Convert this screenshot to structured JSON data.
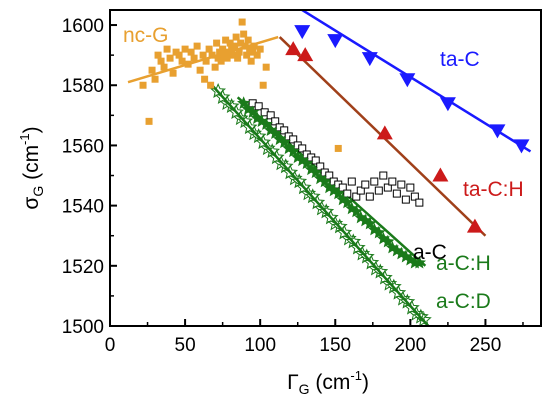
{
  "chart_data": {
    "type": "scatter",
    "title": "",
    "xlabel": {
      "main": "Γ",
      "sub": "G",
      "unit": "(cm",
      "exp": "-1",
      "close": ")"
    },
    "ylabel": {
      "main": "σ",
      "sub": "G",
      "unit": "(cm",
      "exp": "-1",
      "close": ")"
    },
    "xlim": [
      0,
      287
    ],
    "ylim": [
      1500,
      1605
    ],
    "xticks": [
      "0",
      "50",
      "100",
      "150",
      "200",
      "250"
    ],
    "yticks": [
      "1500",
      "1520",
      "1540",
      "1560",
      "1580",
      "1600"
    ],
    "grid": false,
    "legend": "none",
    "series": [
      {
        "name": "ta-C",
        "color": "#1a1aff",
        "marker": "triangle-down",
        "fit": [
          [
            115,
            1609
          ],
          [
            280,
            1558
          ]
        ],
        "points": [
          [
            128,
            1598
          ],
          [
            150,
            1595
          ],
          [
            173,
            1589
          ],
          [
            198,
            1582
          ],
          [
            225,
            1574
          ],
          [
            258,
            1565
          ],
          [
            274,
            1560
          ]
        ]
      },
      {
        "name": "ta-C:H",
        "color": "#cc1a1a",
        "fit_color": "#a0401a",
        "marker": "triangle-up",
        "fit": [
          [
            113,
            1596
          ],
          [
            250,
            1530
          ]
        ],
        "points": [
          [
            122,
            1592
          ],
          [
            130,
            1590
          ],
          [
            183,
            1564
          ],
          [
            220,
            1550
          ],
          [
            243,
            1533
          ]
        ]
      },
      {
        "name": "nc-G",
        "color": "#e8a030",
        "marker": "square",
        "fit": [
          [
            12,
            1581
          ],
          [
            112,
            1596
          ]
        ],
        "points": [
          [
            22,
            1580
          ],
          [
            26,
            1568
          ],
          [
            28,
            1585
          ],
          [
            30,
            1582
          ],
          [
            32,
            1590
          ],
          [
            34,
            1588
          ],
          [
            36,
            1586
          ],
          [
            38,
            1592
          ],
          [
            40,
            1589
          ],
          [
            42,
            1584
          ],
          [
            44,
            1591
          ],
          [
            46,
            1590
          ],
          [
            48,
            1588
          ],
          [
            50,
            1592
          ],
          [
            52,
            1587
          ],
          [
            54,
            1591
          ],
          [
            56,
            1589
          ],
          [
            58,
            1593
          ],
          [
            60,
            1585
          ],
          [
            62,
            1590
          ],
          [
            63,
            1582
          ],
          [
            64,
            1588
          ],
          [
            66,
            1592
          ],
          [
            67,
            1580
          ],
          [
            68,
            1590
          ],
          [
            70,
            1586
          ],
          [
            71,
            1594
          ],
          [
            72,
            1589
          ],
          [
            73,
            1591
          ],
          [
            74,
            1588
          ],
          [
            75,
            1592
          ],
          [
            76,
            1590
          ],
          [
            77,
            1595
          ],
          [
            78,
            1589
          ],
          [
            79,
            1591
          ],
          [
            80,
            1594
          ],
          [
            81,
            1592
          ],
          [
            82,
            1590
          ],
          [
            83,
            1593
          ],
          [
            84,
            1596
          ],
          [
            85,
            1589
          ],
          [
            86,
            1591
          ],
          [
            87,
            1594
          ],
          [
            88,
            1601
          ],
          [
            89,
            1597
          ],
          [
            90,
            1593
          ],
          [
            91,
            1590
          ],
          [
            92,
            1595
          ],
          [
            93,
            1592
          ],
          [
            94,
            1588
          ],
          [
            95,
            1591
          ],
          [
            96,
            1593
          ],
          [
            98,
            1590
          ],
          [
            100,
            1592
          ],
          [
            102,
            1580
          ],
          [
            104,
            1586
          ],
          [
            152,
            1559
          ]
        ]
      },
      {
        "name": "a-C",
        "color": "#000000",
        "marker": "square-open",
        "fit": null,
        "points": [
          [
            95,
            1574
          ],
          [
            99,
            1573
          ],
          [
            103,
            1571
          ],
          [
            107,
            1570
          ],
          [
            110,
            1568
          ],
          [
            113,
            1566
          ],
          [
            116,
            1565
          ],
          [
            119,
            1563
          ],
          [
            122,
            1562
          ],
          [
            125,
            1560
          ],
          [
            128,
            1559
          ],
          [
            131,
            1557
          ],
          [
            134,
            1556
          ],
          [
            137,
            1555
          ],
          [
            140,
            1553
          ],
          [
            143,
            1551
          ],
          [
            146,
            1550
          ],
          [
            149,
            1548
          ],
          [
            152,
            1547
          ],
          [
            155,
            1546
          ],
          [
            158,
            1544
          ],
          [
            161,
            1548
          ],
          [
            164,
            1543
          ],
          [
            167,
            1545
          ],
          [
            170,
            1547
          ],
          [
            173,
            1543
          ],
          [
            176,
            1548
          ],
          [
            179,
            1545
          ],
          [
            182,
            1550
          ],
          [
            185,
            1546
          ],
          [
            188,
            1548
          ],
          [
            191,
            1544
          ],
          [
            194,
            1547
          ],
          [
            197,
            1542
          ],
          [
            200,
            1546
          ],
          [
            203,
            1543
          ],
          [
            206,
            1541
          ]
        ]
      },
      {
        "name": "a-C:H",
        "color": "#1a7a1a",
        "marker": "star-filled",
        "fit": [
          [
            85,
            1576
          ],
          [
            210,
            1520
          ]
        ],
        "points": [
          [
            89,
            1574
          ],
          [
            92,
            1572
          ],
          [
            95,
            1571
          ],
          [
            98,
            1569
          ],
          [
            101,
            1568
          ],
          [
            104,
            1567
          ],
          [
            107,
            1565
          ],
          [
            110,
            1564
          ],
          [
            113,
            1562
          ],
          [
            116,
            1561
          ],
          [
            119,
            1559
          ],
          [
            122,
            1558
          ],
          [
            125,
            1556
          ],
          [
            128,
            1555
          ],
          [
            131,
            1554
          ],
          [
            134,
            1552
          ],
          [
            137,
            1551
          ],
          [
            140,
            1549
          ],
          [
            143,
            1548
          ],
          [
            146,
            1546
          ],
          [
            149,
            1545
          ],
          [
            152,
            1544
          ],
          [
            155,
            1542
          ],
          [
            158,
            1541
          ],
          [
            161,
            1539
          ],
          [
            164,
            1538
          ],
          [
            167,
            1536
          ],
          [
            170,
            1535
          ],
          [
            173,
            1534
          ],
          [
            176,
            1532
          ],
          [
            179,
            1531
          ],
          [
            182,
            1529
          ],
          [
            185,
            1528
          ],
          [
            188,
            1526
          ],
          [
            191,
            1525
          ],
          [
            194,
            1524
          ],
          [
            197,
            1523
          ],
          [
            200,
            1522
          ],
          [
            203,
            1521
          ],
          [
            206,
            1521
          ]
        ]
      },
      {
        "name": "a-C:D",
        "color": "#1a7a1a",
        "marker": "star-open",
        "fit": [
          [
            68,
            1580
          ],
          [
            212,
            1500
          ]
        ],
        "points": [
          [
            72,
            1578
          ],
          [
            75,
            1576
          ],
          [
            78,
            1574
          ],
          [
            81,
            1573
          ],
          [
            84,
            1571
          ],
          [
            87,
            1569
          ],
          [
            90,
            1568
          ],
          [
            93,
            1566
          ],
          [
            96,
            1564
          ],
          [
            99,
            1563
          ],
          [
            102,
            1561
          ],
          [
            105,
            1559
          ],
          [
            108,
            1558
          ],
          [
            111,
            1556
          ],
          [
            114,
            1554
          ],
          [
            117,
            1553
          ],
          [
            120,
            1551
          ],
          [
            123,
            1549
          ],
          [
            126,
            1548
          ],
          [
            129,
            1546
          ],
          [
            132,
            1544
          ],
          [
            135,
            1543
          ],
          [
            138,
            1541
          ],
          [
            141,
            1539
          ],
          [
            144,
            1538
          ],
          [
            147,
            1536
          ],
          [
            150,
            1534
          ],
          [
            153,
            1533
          ],
          [
            156,
            1531
          ],
          [
            159,
            1529
          ],
          [
            162,
            1528
          ],
          [
            165,
            1526
          ],
          [
            168,
            1524
          ],
          [
            171,
            1523
          ],
          [
            174,
            1521
          ],
          [
            177,
            1519
          ],
          [
            180,
            1518
          ],
          [
            183,
            1516
          ],
          [
            186,
            1514
          ],
          [
            189,
            1513
          ],
          [
            192,
            1511
          ],
          [
            195,
            1509
          ],
          [
            198,
            1508
          ],
          [
            201,
            1506
          ],
          [
            204,
            1504
          ],
          [
            207,
            1503
          ],
          [
            209,
            1502
          ]
        ]
      }
    ]
  }
}
